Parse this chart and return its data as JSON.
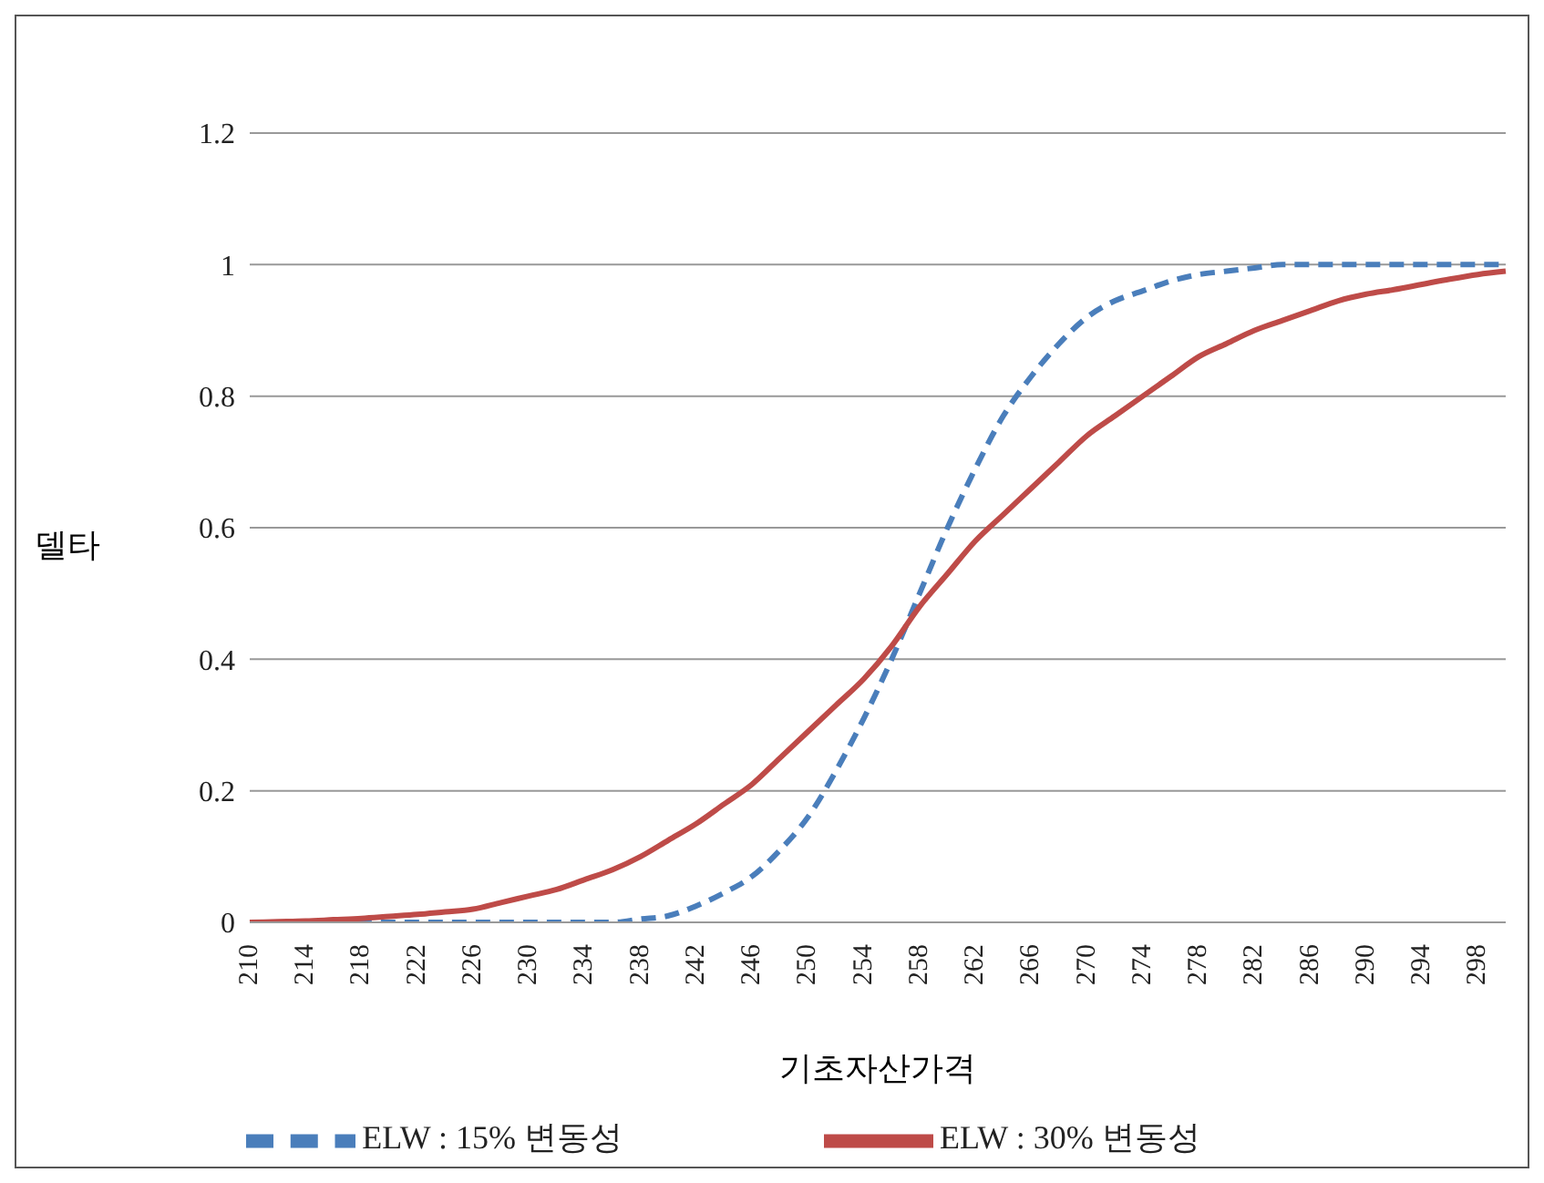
{
  "chart_data": {
    "type": "line",
    "xlabel": "기초자산가격",
    "ylabel": "델타",
    "categories": [
      "210",
      null,
      "214",
      null,
      "218",
      null,
      "222",
      null,
      "226",
      null,
      "230",
      null,
      "234",
      null,
      "238",
      null,
      "242",
      null,
      "246",
      null,
      "250",
      null,
      "254",
      null,
      "258",
      null,
      "262",
      null,
      "266",
      null,
      "270",
      null,
      "274",
      null,
      "278",
      null,
      "282",
      null,
      "286",
      null,
      "290",
      null,
      "294",
      null,
      "298",
      null
    ],
    "series": [
      {
        "name": "ELW : 15% 변동성",
        "color": "#4a7ebb",
        "line_style": "dashed",
        "values": [
          null,
          null,
          null,
          0,
          0,
          0,
          0,
          0,
          0,
          0,
          0,
          0,
          0,
          0,
          0.005,
          0.01,
          0.025,
          0.045,
          0.07,
          0.11,
          0.16,
          0.23,
          0.31,
          0.4,
          0.5,
          0.6,
          0.69,
          0.77,
          0.83,
          0.88,
          0.92,
          0.945,
          0.96,
          0.975,
          0.985,
          0.99,
          0.995,
          1,
          1,
          1,
          1,
          1,
          1,
          1,
          1,
          1
        ]
      },
      {
        "name": "ELW : 30% 변동성",
        "color": "#be4b48",
        "line_style": "solid",
        "values": [
          0,
          0.001,
          0.002,
          0.004,
          0.006,
          0.009,
          0.012,
          0.016,
          0.02,
          0.03,
          0.04,
          0.05,
          0.065,
          0.08,
          0.1,
          0.125,
          0.15,
          0.18,
          0.21,
          0.25,
          0.29,
          0.33,
          0.37,
          0.42,
          0.48,
          0.53,
          0.58,
          0.62,
          0.66,
          0.7,
          0.74,
          0.77,
          0.8,
          0.83,
          0.86,
          0.88,
          0.9,
          0.915,
          0.93,
          0.945,
          0.955,
          0.962,
          0.97,
          0.978,
          0.985,
          0.99
        ]
      }
    ],
    "ylim": [
      0,
      1.2
    ],
    "yticks": [
      0,
      0.2,
      0.4,
      0.6,
      0.8,
      1,
      1.2
    ],
    "grid": "y",
    "legend": "bottom",
    "marker": "none"
  }
}
